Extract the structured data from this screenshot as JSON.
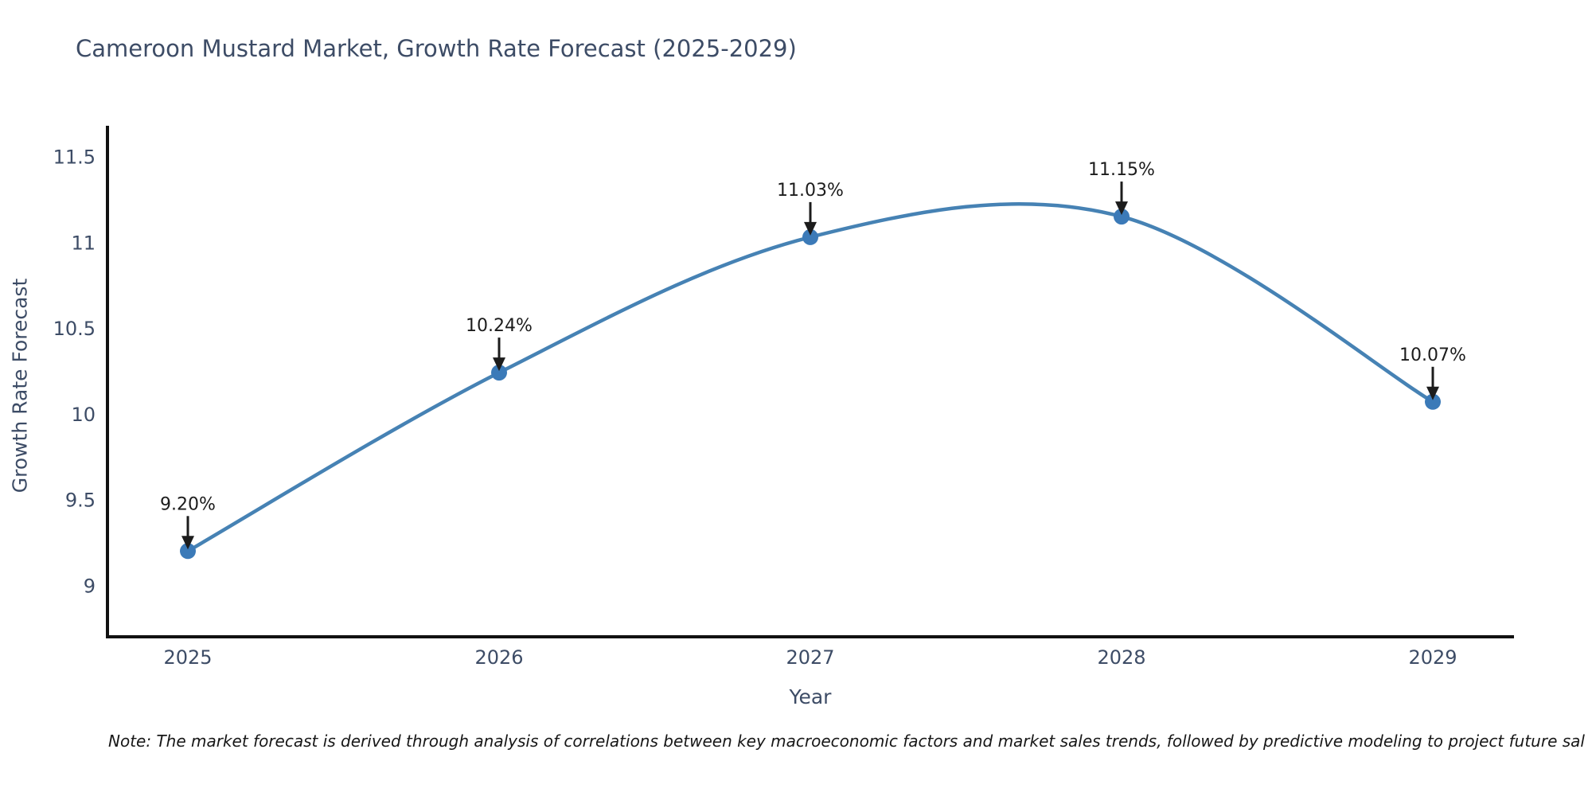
{
  "page": {
    "title": "Cameroon Mustard Market, Growth Rate Forecast (2025-2029)",
    "note": "Note: The market forecast is derived through analysis of correlations between key macroeconomic factors and market sales trends, followed by predictive modeling to project future sal"
  },
  "chart_data": {
    "type": "line",
    "title": "Cameroon Mustard Market, Growth Rate Forecast (2025-2029)",
    "xlabel": "Year",
    "ylabel": "Growth Rate Forecast",
    "x": [
      "2025",
      "2026",
      "2027",
      "2028",
      "2029"
    ],
    "series": [
      {
        "name": "Growth Rate Forecast",
        "values": [
          9.2,
          10.24,
          11.03,
          11.15,
          10.07
        ]
      }
    ],
    "point_labels": [
      "9.20%",
      "10.24%",
      "11.03%",
      "11.15%",
      "10.07%"
    ],
    "yticks": [
      "9",
      "9.5",
      "10",
      "10.5",
      "11",
      "11.5"
    ],
    "ylim": [
      8.7,
      11.67
    ],
    "grid": false,
    "legend_position": "none",
    "curve": "smooth-spline",
    "annotation_style": "arrow-down-to-point",
    "colors": {
      "line": "#4682b4",
      "marker": "#3b7ab8",
      "axis": "#111111",
      "labels": "#3d4c66",
      "annotations": "#1c1c1c"
    }
  }
}
